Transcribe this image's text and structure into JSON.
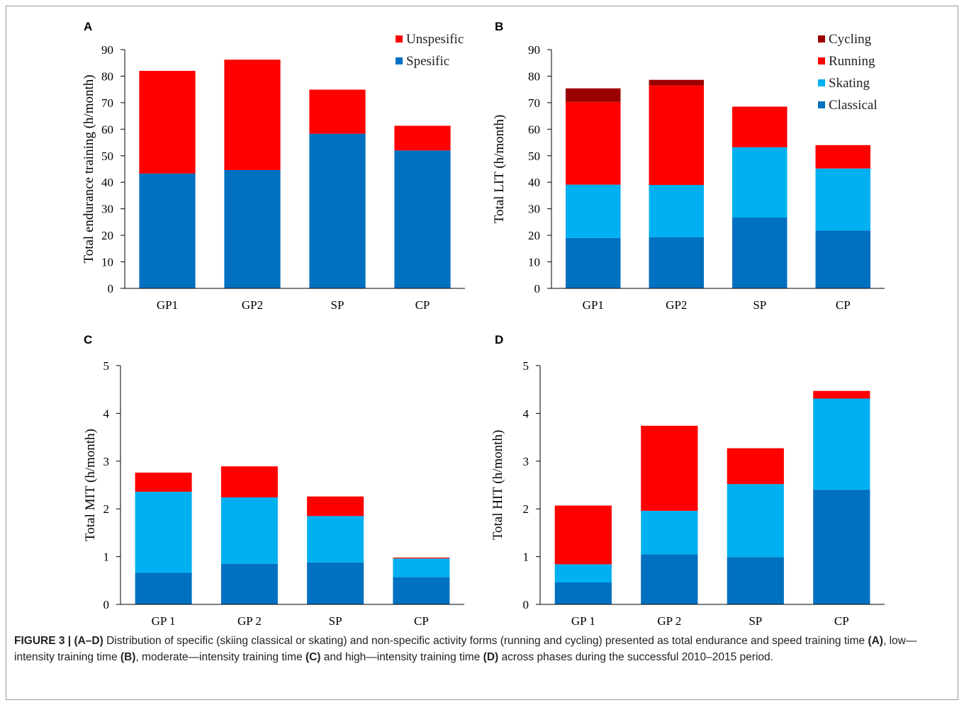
{
  "colors": {
    "classical": "#0070c0",
    "skating": "#00b0f0",
    "running": "#ff0000",
    "cycling": "#9b0000",
    "spesific": "#0070c0",
    "unspesific": "#ff0000"
  },
  "chart_data": [
    {
      "panel": "A",
      "type": "bar",
      "stacked": true,
      "title": "",
      "xlabel": "",
      "ylabel": "Total endurance training  (h/month)",
      "ylim": [
        0,
        90
      ],
      "yticks": [
        0,
        10,
        20,
        30,
        40,
        50,
        60,
        70,
        80,
        90
      ],
      "categories": [
        "GP1",
        "GP2",
        "SP",
        "CP"
      ],
      "legend_position": "top-right",
      "series": [
        {
          "name": "Spesific",
          "color_key": "spesific",
          "values": [
            43.3,
            44.6,
            58.3,
            52.0
          ]
        },
        {
          "name": "Unspesific",
          "color_key": "unspesific",
          "values": [
            38.7,
            41.6,
            16.6,
            9.3
          ]
        }
      ],
      "legend_order": [
        1,
        0
      ]
    },
    {
      "panel": "B",
      "type": "bar",
      "stacked": true,
      "title": "",
      "xlabel": "",
      "ylabel": "Total LIT  (h/month)",
      "ylim": [
        0,
        90
      ],
      "yticks": [
        0,
        10,
        20,
        30,
        40,
        50,
        60,
        70,
        80,
        90
      ],
      "categories": [
        "GP1",
        "GP2",
        "SP",
        "CP"
      ],
      "legend_position": "top-right",
      "series": [
        {
          "name": "Classical",
          "color_key": "classical",
          "values": [
            19.0,
            19.3,
            26.7,
            21.8
          ]
        },
        {
          "name": "Skating",
          "color_key": "skating",
          "values": [
            20.1,
            19.7,
            26.5,
            23.4
          ]
        },
        {
          "name": "Running",
          "color_key": "running",
          "values": [
            31.2,
            37.5,
            15.3,
            8.8
          ]
        },
        {
          "name": "Cycling",
          "color_key": "cycling",
          "values": [
            5.1,
            2.1,
            0,
            0
          ]
        }
      ],
      "legend_order": [
        3,
        2,
        1,
        0
      ]
    },
    {
      "panel": "C",
      "type": "bar",
      "stacked": true,
      "title": "",
      "xlabel": "",
      "ylabel": "Total MIT  (h/month)",
      "ylim": [
        0,
        5
      ],
      "yticks": [
        0,
        1,
        2,
        3,
        4,
        5
      ],
      "categories": [
        "GP 1",
        "GP 2",
        "SP",
        "CP"
      ],
      "series": [
        {
          "name": "Classical",
          "color_key": "classical",
          "values": [
            0.66,
            0.85,
            0.88,
            0.57
          ]
        },
        {
          "name": "Skating",
          "color_key": "skating",
          "values": [
            1.7,
            1.39,
            0.97,
            0.39
          ]
        },
        {
          "name": "Running",
          "color_key": "running",
          "values": [
            0.4,
            0.65,
            0.41,
            0.02
          ]
        }
      ]
    },
    {
      "panel": "D",
      "type": "bar",
      "stacked": true,
      "title": "",
      "xlabel": "",
      "ylabel": "Total HIT  (h/month)",
      "ylim": [
        0,
        5
      ],
      "yticks": [
        0,
        1,
        2,
        3,
        4,
        5
      ],
      "categories": [
        "GP 1",
        "GP 2",
        "SP",
        "CP"
      ],
      "series": [
        {
          "name": "Classical",
          "color_key": "classical",
          "values": [
            0.46,
            1.05,
            0.99,
            2.4
          ]
        },
        {
          "name": "Skating",
          "color_key": "skating",
          "values": [
            0.38,
            0.91,
            1.53,
            1.91
          ]
        },
        {
          "name": "Running",
          "color_key": "running",
          "values": [
            1.23,
            1.78,
            0.75,
            0.16
          ]
        }
      ]
    }
  ],
  "caption": {
    "figure_label": "FIGURE 3 |",
    "panel_range": "(A–D)",
    "part1": " Distribution of specific (skiing classical or skating) and non-specific activity forms (running and cycling) presented as total endurance and speed training time ",
    "ref_a": "(A)",
    "part2": ", low—intensity training time ",
    "ref_b": "(B)",
    "part3": ", moderate—intensity training time ",
    "ref_c": "(C)",
    "part4": " and high—intensity training time ",
    "ref_d": "(D)",
    "part5": " across phases during the successful 2010–2015 period."
  }
}
